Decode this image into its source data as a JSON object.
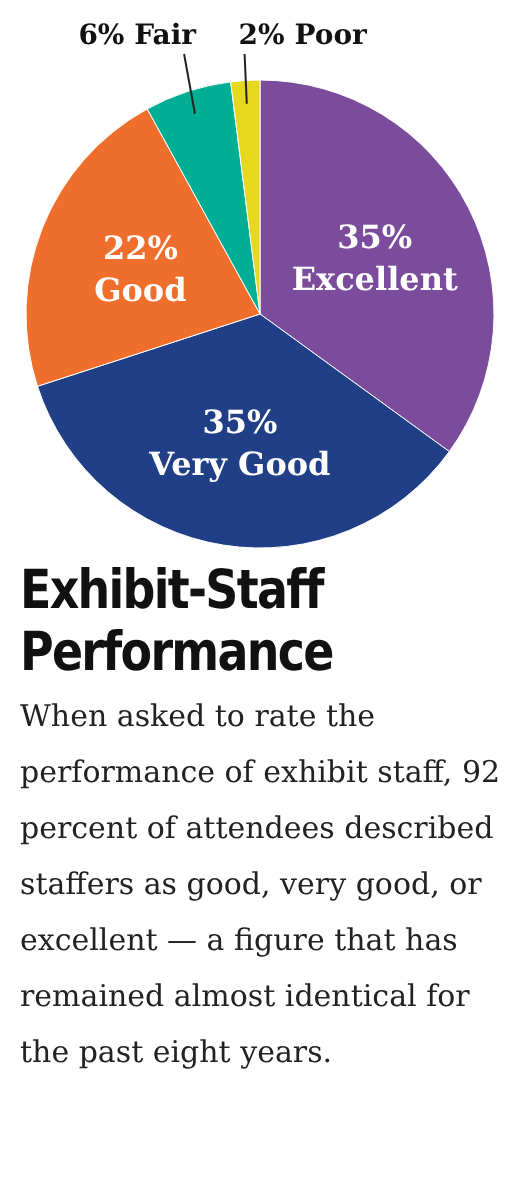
{
  "chart_data": {
    "type": "pie",
    "title": "Exhibit-Staff Performance",
    "subtitle": "When asked to rate the performance of exhibit staff, 92 percent of attendees described staffers as good, very good, or excellent — a figure that has remained almost identical for the past eight years.",
    "categories": [
      "Excellent",
      "Very Good",
      "Good",
      "Fair",
      "Poor"
    ],
    "values": [
      35,
      35,
      22,
      6,
      2
    ],
    "colors": [
      "#7b4c9c",
      "#213f87",
      "#f06e2b",
      "#00ad95",
      "#e6d81f"
    ],
    "value_labels": [
      "35%",
      "35%",
      "22%",
      "6%",
      "2%"
    ]
  }
}
